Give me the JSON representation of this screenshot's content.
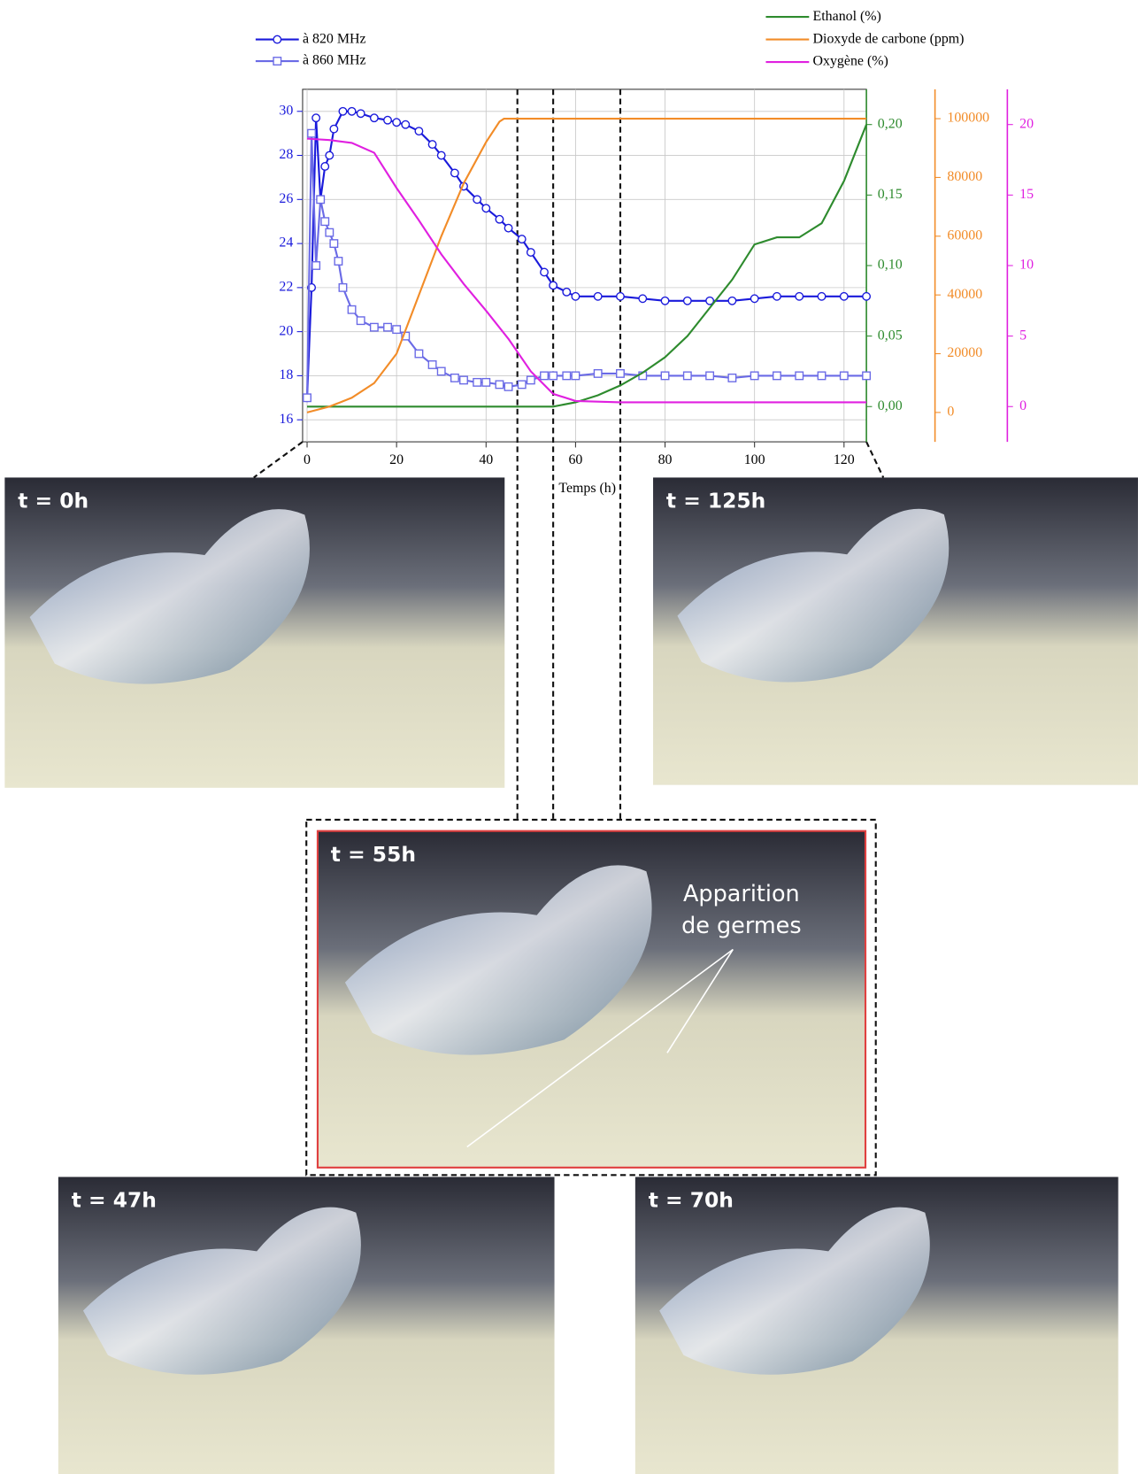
{
  "chart_data": {
    "type": "line",
    "xlabel": "Temps (h)",
    "xlim": [
      -1,
      125
    ],
    "xticks": [
      0,
      20,
      40,
      60,
      80,
      100,
      120
    ],
    "ylim": [
      15,
      31
    ],
    "yticks": [
      16,
      18,
      20,
      22,
      24,
      26,
      28,
      30
    ],
    "y2lim": [
      -0.025,
      0.225
    ],
    "y2ticks": [
      {
        "value": 0,
        "label": "0,00"
      },
      {
        "value": 0.05,
        "label": "0,05"
      },
      {
        "value": 0.1,
        "label": "0,10"
      },
      {
        "value": 0.15,
        "label": "0,15"
      },
      {
        "value": 0.2,
        "label": "0,20"
      }
    ],
    "y3lim": [
      -10000,
      110000
    ],
    "y3ticks": [
      0,
      20000,
      40000,
      60000,
      80000,
      100000
    ],
    "y4lim": [
      -2.5,
      22.5
    ],
    "y4ticks": [
      0,
      5,
      10,
      15,
      20
    ],
    "grid": true,
    "vlines": [
      47,
      55,
      70
    ],
    "series": [
      {
        "name": "à 820 MHz",
        "color": "#1a1adb",
        "marker": "circle",
        "axis": "y",
        "x": [
          0,
          1,
          2,
          3,
          4,
          5,
          6,
          8,
          10,
          12,
          15,
          18,
          20,
          22,
          25,
          28,
          30,
          33,
          35,
          38,
          40,
          43,
          45,
          48,
          50,
          53,
          55,
          58,
          60,
          65,
          70,
          75,
          80,
          85,
          90,
          95,
          100,
          105,
          110,
          115,
          120,
          125
        ],
        "values": [
          17,
          22,
          29.7,
          26,
          27.5,
          28,
          29.2,
          30,
          30,
          29.9,
          29.7,
          29.6,
          29.5,
          29.4,
          29.1,
          28.5,
          28,
          27.2,
          26.6,
          26,
          25.6,
          25.1,
          24.7,
          24.2,
          23.6,
          22.7,
          22.1,
          21.8,
          21.6,
          21.6,
          21.6,
          21.5,
          21.4,
          21.4,
          21.4,
          21.4,
          21.5,
          21.6,
          21.6,
          21.6,
          21.6,
          21.6
        ]
      },
      {
        "name": "à 860 MHz",
        "color": "#6a6ae6",
        "marker": "square",
        "axis": "y",
        "x": [
          0,
          1,
          2,
          3,
          4,
          5,
          6,
          7,
          8,
          10,
          12,
          15,
          18,
          20,
          22,
          25,
          28,
          30,
          33,
          35,
          38,
          40,
          43,
          45,
          48,
          50,
          53,
          55,
          58,
          60,
          65,
          70,
          75,
          80,
          85,
          90,
          95,
          100,
          105,
          110,
          115,
          120,
          125
        ],
        "values": [
          17,
          29,
          23,
          26,
          25,
          24.5,
          24,
          23.2,
          22,
          21,
          20.5,
          20.2,
          20.2,
          20.1,
          19.8,
          19,
          18.5,
          18.2,
          17.9,
          17.8,
          17.7,
          17.7,
          17.6,
          17.5,
          17.6,
          17.8,
          18,
          18,
          18,
          18,
          18.1,
          18.1,
          18,
          18,
          18,
          18,
          17.9,
          18,
          18,
          18,
          18,
          18,
          18
        ]
      },
      {
        "name": "Ethanol (%)",
        "color": "#2e8b2e",
        "axis": "y2",
        "x": [
          0,
          20,
          40,
          55,
          60,
          65,
          70,
          75,
          80,
          85,
          90,
          95,
          100,
          105,
          110,
          115,
          120,
          125
        ],
        "values": [
          0,
          0,
          0,
          0,
          0.003,
          0.008,
          0.015,
          0.024,
          0.035,
          0.05,
          0.07,
          0.09,
          0.115,
          0.12,
          0.12,
          0.13,
          0.16,
          0.2
        ]
      },
      {
        "name": "Dioxyde de carbone (ppm)",
        "color": "#f28c28",
        "axis": "y3",
        "x": [
          0,
          5,
          10,
          15,
          20,
          25,
          30,
          35,
          40,
          43,
          44,
          60,
          80,
          100,
          125
        ],
        "values": [
          0,
          2000,
          5000,
          10000,
          20000,
          40000,
          60000,
          78000,
          92000,
          99000,
          100000,
          100000,
          100000,
          100000,
          100000
        ]
      },
      {
        "name": "Oxygène (%)",
        "color": "#e020e0",
        "axis": "y4",
        "x": [
          0,
          5,
          10,
          15,
          20,
          25,
          30,
          35,
          40,
          45,
          50,
          55,
          60,
          70,
          80,
          100,
          125
        ],
        "values": [
          19,
          18.9,
          18.7,
          18,
          15.5,
          13.2,
          10.8,
          8.7,
          6.8,
          4.8,
          2.5,
          0.9,
          0.4,
          0.3,
          0.3,
          0.3,
          0.3
        ]
      }
    ]
  },
  "photos": [
    {
      "label": "t = 0h"
    },
    {
      "label": "t = 125h"
    },
    {
      "label": "t = 55h"
    },
    {
      "label": "t = 47h"
    },
    {
      "label": "t = 70h"
    }
  ],
  "annotation": {
    "lines": [
      "Apparition",
      "de germes"
    ]
  }
}
